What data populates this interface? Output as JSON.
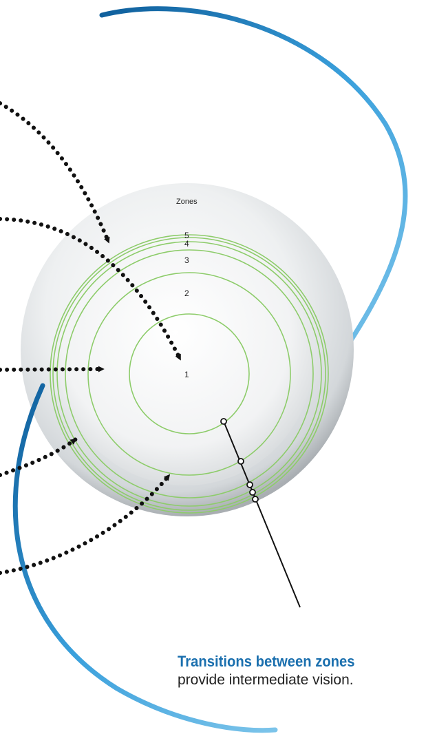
{
  "zones": {
    "title": "Zones",
    "labels": [
      "1",
      "2",
      "3",
      "4",
      "5"
    ]
  },
  "caption": {
    "headline": "Transitions between zones",
    "body": "provide intermediate vision."
  },
  "colors": {
    "haptic": "#2b8ccc",
    "zone_ring": "#8dcc6a",
    "arrow": "#111111",
    "headline": "#1a6fae"
  }
}
